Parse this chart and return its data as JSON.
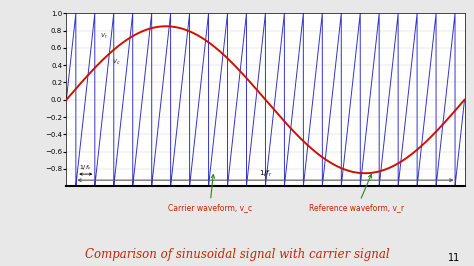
{
  "title": "Comparison of sinusoidal signal with carrier signal",
  "title_color": "#cc2200",
  "title_fontsize": 8.5,
  "bg_color": "#e8e8e8",
  "plot_bg": "#ffffff",
  "ref_amplitude": 0.85,
  "ref_freq_cycles": 1,
  "carrier_freq_ratio": 21,
  "carrier_color": "#3333cc",
  "ref_color": "#cc1100",
  "ylim": [
    -1,
    1
  ],
  "yticks": [
    -0.8,
    -0.6,
    -0.4,
    -0.2,
    0,
    0.2,
    0.4,
    0.6,
    0.8,
    1
  ],
  "annotation_carrier": "Carrier waveform, v_c",
  "annotation_ref": "Reference waveform, v_r",
  "carrier_lw": 0.7,
  "ref_lw": 1.4,
  "page_number": "11"
}
